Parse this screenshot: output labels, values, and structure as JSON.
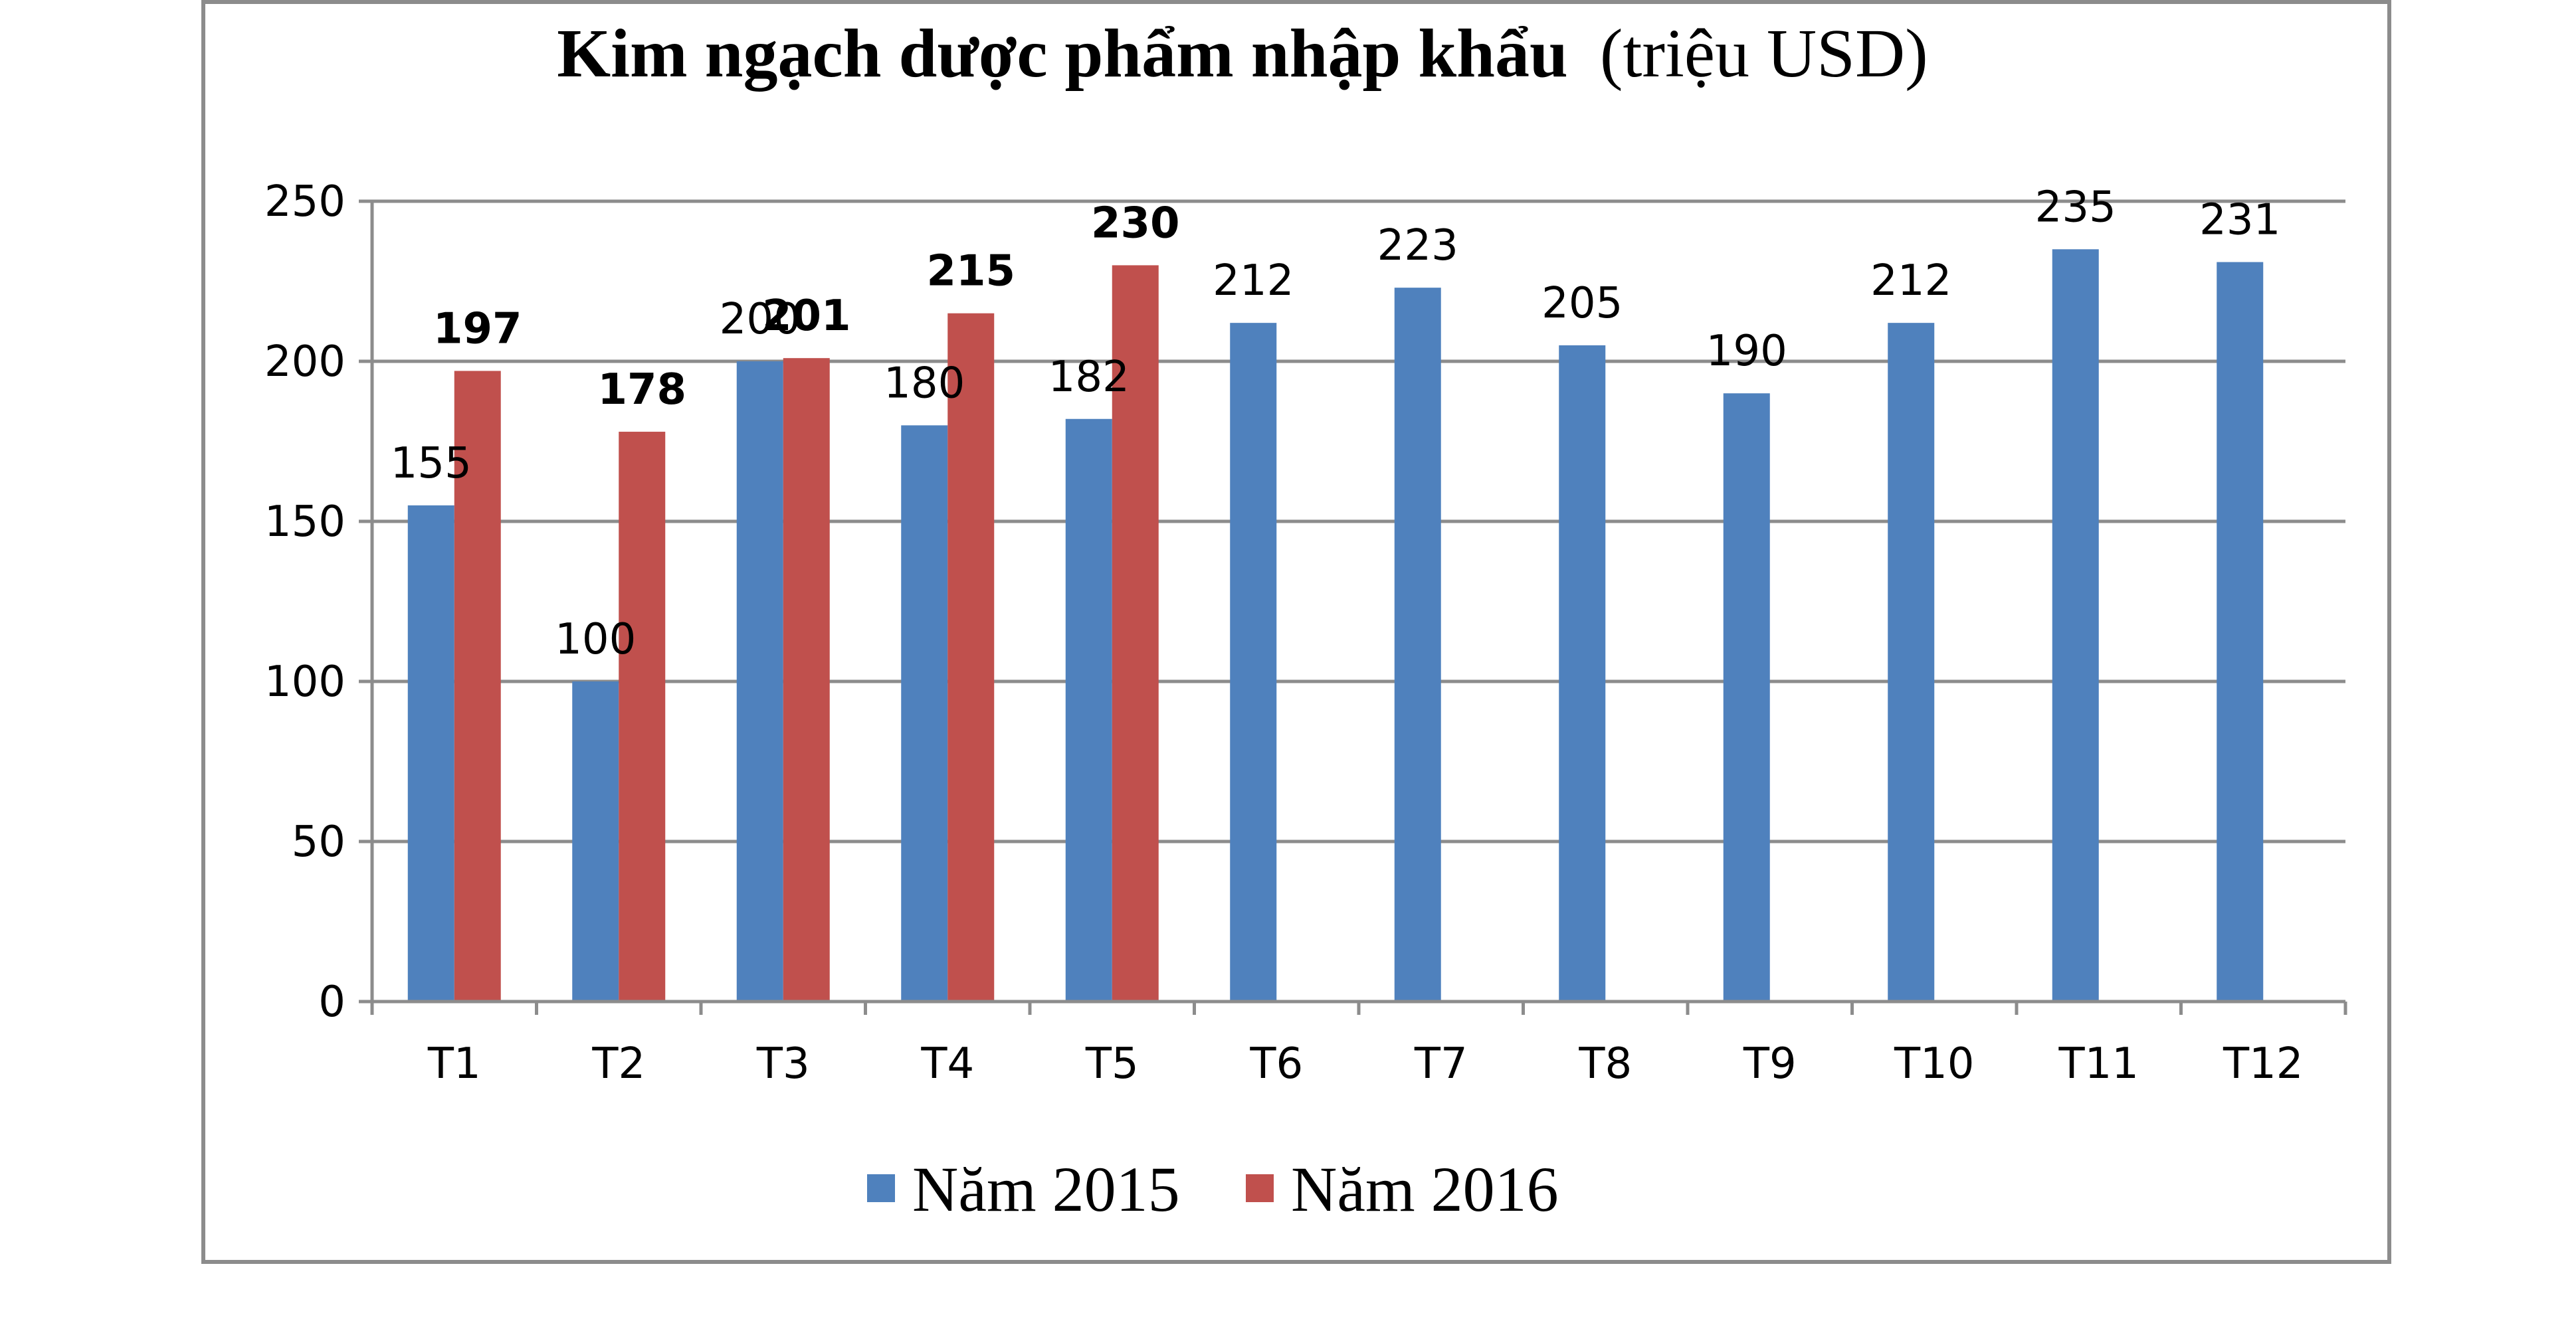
{
  "chart_data": {
    "type": "bar",
    "title_bold": "Kim ngạch dược phẩm nhập khẩu",
    "title_normal": "(triệu USD)",
    "xlabel": "",
    "ylabel": "",
    "ylim": [
      0,
      250
    ],
    "yticks": [
      "0",
      "50",
      "100",
      "150",
      "200",
      "250"
    ],
    "grid": true,
    "legend_position": "bottom",
    "categories": [
      "T1",
      "T2",
      "T3",
      "T4",
      "T5",
      "T6",
      "T7",
      "T8",
      "T9",
      "T10",
      "T11",
      "T12"
    ],
    "series": [
      {
        "name": "Năm 2015",
        "color": "#4F81BD",
        "label_bold": false,
        "values": [
          155,
          100,
          200,
          180,
          182,
          212,
          223,
          205,
          190,
          212,
          235,
          231
        ]
      },
      {
        "name": "Năm 2016",
        "color": "#C0504D",
        "label_bold": true,
        "values": [
          197,
          178,
          201,
          215,
          230,
          null,
          null,
          null,
          null,
          null,
          null,
          null
        ]
      }
    ]
  }
}
